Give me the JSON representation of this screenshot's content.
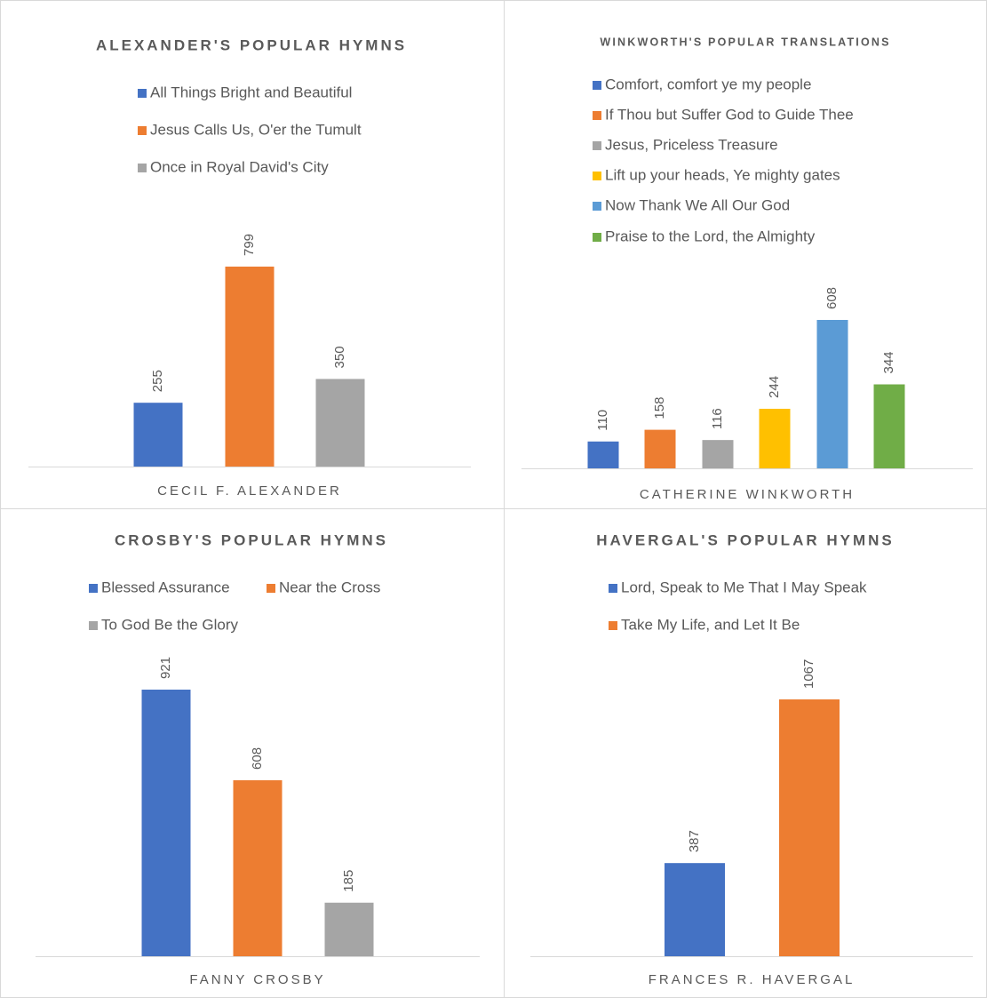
{
  "chart_data": [
    {
      "type": "bar",
      "title": "ALEXANDER'S POPULAR HYMNS",
      "categories": [
        "CECIL F. ALEXANDER"
      ],
      "series": [
        {
          "name": "All Things Bright and Beautiful",
          "color": "#4472c4",
          "values": [
            255
          ]
        },
        {
          "name": "Jesus Calls Us, O'er the Tumult",
          "color": "#ed7d31",
          "values": [
            799
          ]
        },
        {
          "name": "Once in Royal David's City",
          "color": "#a5a5a5",
          "values": [
            350
          ]
        }
      ]
    },
    {
      "type": "bar",
      "title": "WINKWORTH'S POPULAR TRANSLATIONS",
      "categories": [
        "CATHERINE WINKWORTH"
      ],
      "series": [
        {
          "name": "Comfort, comfort ye my people",
          "color": "#4472c4",
          "values": [
            110
          ]
        },
        {
          "name": "If Thou but Suffer God to Guide Thee",
          "color": "#ed7d31",
          "values": [
            158
          ]
        },
        {
          "name": "Jesus, Priceless Treasure",
          "color": "#a5a5a5",
          "values": [
            116
          ]
        },
        {
          "name": "Lift up your heads, Ye mighty gates",
          "color": "#ffc000",
          "values": [
            244
          ]
        },
        {
          "name": "Now Thank We All Our God",
          "color": "#5b9bd5",
          "values": [
            608
          ]
        },
        {
          "name": "Praise to the Lord, the Almighty",
          "color": "#70ad47",
          "values": [
            344
          ]
        }
      ]
    },
    {
      "type": "bar",
      "title": "CROSBY'S POPULAR HYMNS",
      "categories": [
        "FANNY CROSBY"
      ],
      "series": [
        {
          "name": "Blessed Assurance",
          "color": "#4472c4",
          "values": [
            921
          ]
        },
        {
          "name": "Near the Cross",
          "color": "#ed7d31",
          "values": [
            608
          ]
        },
        {
          "name": "To God Be the Glory",
          "color": "#a5a5a5",
          "values": [
            185
          ]
        }
      ]
    },
    {
      "type": "bar",
      "title": "HAVERGAL'S POPULAR HYMNS",
      "categories": [
        "FRANCES R. HAVERGAL"
      ],
      "series": [
        {
          "name": "Lord, Speak to Me That I May Speak",
          "color": "#4472c4",
          "values": [
            387
          ]
        },
        {
          "name": "Take My Life, and Let It Be",
          "color": "#ed7d31",
          "values": [
            1067
          ]
        }
      ]
    }
  ]
}
